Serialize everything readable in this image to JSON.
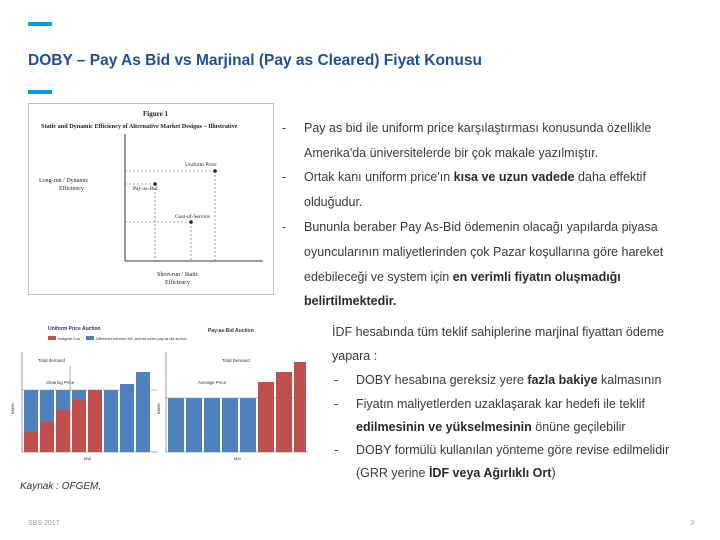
{
  "title": "DOBY – Pay As Bid vs Marjinal (Pay as Cleared) Fiyat Konusu",
  "colors": {
    "accent": "#00a3e0",
    "title": "#1f4e9a",
    "bar_red": "#c0504d",
    "bar_blue": "#4f81bd"
  },
  "figure1": {
    "heading": "Figure 1",
    "subtitle": "Static and Dynamic Efficiency of Alternative Market Designs – Illustrative",
    "y_label_1": "Long-run / Dynamic",
    "y_label_2": "Efficiency",
    "x_label_1": "Short-run / Static",
    "x_label_2": "Efficiency",
    "point_uniform": "Uniform Price",
    "point_paybid": "Pay-as-Bid",
    "point_cost": "Cost-of-Service"
  },
  "bullets": [
    {
      "dash": "-",
      "lines": [
        "Pay as bid ile uniform price karşılaştırması konusunda özellikle",
        "Amerika'da üniversitelerde  bir çok makale yazılmıştır."
      ]
    },
    {
      "dash": "-",
      "line1_pre": "Ortak kanı uniform price'ın ",
      "line1_bold": "kısa ve uzun vadede",
      "line1_post": " daha effektif",
      "line2": "olduğudur."
    },
    {
      "dash": "-",
      "line1": "Bununla beraber Pay As-Bid ödemenin olacağı yapılarda piyasa",
      "line2": "oyuncularının maliyetlerinden çok Pazar koşullarına göre hareket",
      "line3_pre": "edebileceği ve system için ",
      "line3_bold": "en verimli fiyatın oluşmadığı",
      "line4_bold": "belirtilmektedir."
    }
  ],
  "idf": {
    "line1": "İDF hesabında tüm teklif sahiplerine marjinal fiyattan ödeme",
    "line2": "yapara :",
    "subs": [
      {
        "dash": "-",
        "pre": "DOBY hesabına gereksiz yere ",
        "bold": "fazla bakiye",
        "post": " kalmasının"
      },
      {
        "dash": "-",
        "pre": "Fiyatın maliyetlerden uzaklaşarak kar hedefi ile teklif",
        "line2_bold": "edilmesinin ve yükselmesinin",
        "line2_post": " önüne geçilebilir"
      },
      {
        "dash": "-",
        "pre": "DOBY formülü kullanılan yönteme göre revise edilmelidir",
        "line2_pre": "(GRR yerine ",
        "line2_bold": "İDF veya Ağırlıklı Ort",
        "line2_post": ")"
      }
    ]
  },
  "figure2": {
    "left_title": "Uniform Price Auction",
    "right_title": "Pay-as-Bid Auction",
    "legend_1": "Marginal Cost",
    "legend_2": "Difference between MC and bid under pay-as-bid auction",
    "left_label_1": "Total demand",
    "left_label_2": "Clearing Price",
    "right_label_1": "Total Demand",
    "right_label_2": "Average Price",
    "x_label": "MW",
    "y_label": "$/MWh"
  },
  "source": "Kaynak : OFGEM,",
  "footer_left": "SBS 2017",
  "footer_right": "3"
}
